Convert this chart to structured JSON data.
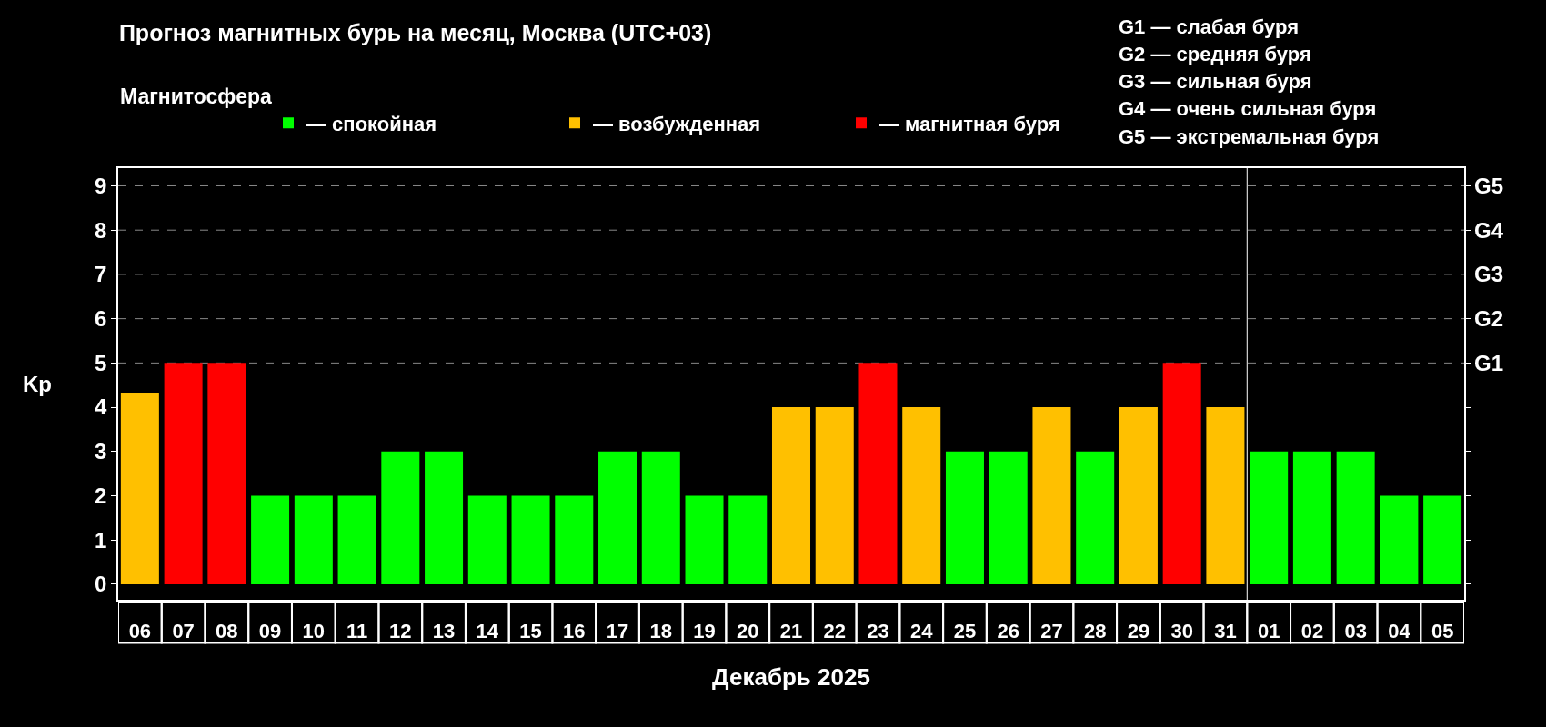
{
  "chart_data": {
    "type": "bar",
    "title": "Прогноз магнитных бурь на месяц, Москва (UTC+03)",
    "xlabel": "Декабрь 2025",
    "ylabel": "Kp",
    "legend_title": "Магнитосфера",
    "legend": "top left",
    "annotations": [
      "G1 — слабая буря",
      "G2 — средняя буря",
      "G3 — сильная буря",
      "G4 — очень сильная буря",
      "G5 — экстремальная буря"
    ],
    "categories": [
      "06",
      "07",
      "08",
      "09",
      "10",
      "11",
      "12",
      "13",
      "14",
      "15",
      "16",
      "17",
      "18",
      "19",
      "20",
      "21",
      "22",
      "23",
      "24",
      "25",
      "26",
      "27",
      "28",
      "29",
      "30",
      "31",
      "01",
      "02",
      "03",
      "04",
      "05"
    ],
    "series": [
      {
        "name": "— спокойная",
        "color": "#00ff00",
        "values": [
          null,
          null,
          null,
          2,
          2,
          2,
          3,
          3,
          2,
          2,
          2,
          3,
          3,
          2,
          2,
          null,
          null,
          null,
          null,
          3,
          3,
          null,
          3,
          null,
          null,
          null,
          3,
          3,
          3,
          2,
          2
        ]
      },
      {
        "name": "— возбужденная",
        "color": "#ffc000",
        "values": [
          4.33,
          null,
          null,
          null,
          null,
          null,
          null,
          null,
          null,
          null,
          null,
          null,
          null,
          null,
          null,
          4,
          4,
          null,
          4,
          null,
          null,
          4,
          null,
          4,
          null,
          4,
          null,
          null,
          null,
          null,
          null
        ]
      },
      {
        "name": "— магнитная буря",
        "color": "#ff0000",
        "values": [
          null,
          5,
          5,
          null,
          null,
          null,
          null,
          null,
          null,
          null,
          null,
          null,
          null,
          null,
          null,
          null,
          null,
          5,
          null,
          null,
          null,
          null,
          null,
          null,
          5,
          null,
          null,
          null,
          null,
          null,
          null
        ]
      }
    ],
    "ylim": [
      -0.35,
      9.4
    ],
    "yticks": [
      0,
      1,
      2,
      3,
      4,
      5,
      6,
      7,
      8,
      9
    ],
    "ref_lines": [
      {
        "axis": "x",
        "value": "01",
        "color": "#ffffff",
        "line_style": "solid"
      },
      {
        "axis": "y",
        "value": 5,
        "label": "G1",
        "color": "#888888",
        "line_style": "dashed"
      },
      {
        "axis": "y",
        "value": 6,
        "label": "G2",
        "color": "#888888",
        "line_style": "dashed"
      },
      {
        "axis": "y",
        "value": 7,
        "label": "G3",
        "color": "#888888",
        "line_style": "dashed"
      },
      {
        "axis": "y",
        "value": 8,
        "label": "G4",
        "color": "#888888",
        "line_style": "dashed"
      },
      {
        "axis": "y",
        "value": 9,
        "label": "G5",
        "color": "#888888",
        "line_style": "dashed"
      }
    ]
  }
}
